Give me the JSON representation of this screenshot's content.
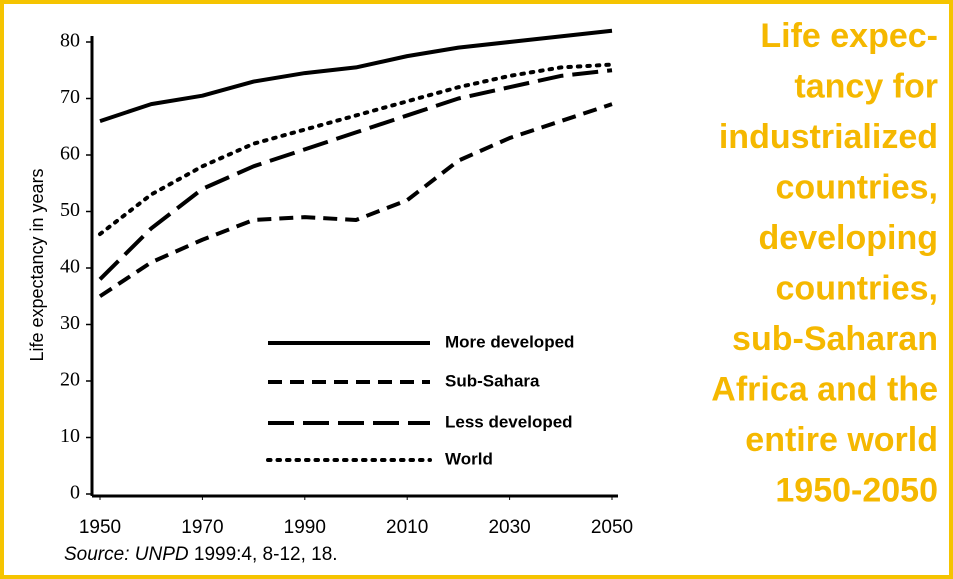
{
  "chart_data": {
    "type": "line",
    "title_lines": [
      "Life expec-",
      "tancy for",
      "industrialized",
      "countries,",
      "developing",
      "countries,",
      "sub-Saharan",
      "Africa and the",
      "entire world",
      "1950-2050"
    ],
    "title_color": "#f5b800",
    "y_label": "Life expectancy in years",
    "source_italic": "Source: UNPD",
    "source_rest": " 1999:4, 8-12, 18.",
    "x": [
      1950,
      1960,
      1970,
      1980,
      1990,
      2000,
      2010,
      2020,
      2030,
      2040,
      2050
    ],
    "xlim": [
      1950,
      2050
    ],
    "xticks": [
      1950,
      1970,
      1990,
      2010,
      2030,
      2050
    ],
    "ylim": [
      0,
      80
    ],
    "yticks": [
      0,
      10,
      20,
      30,
      40,
      50,
      60,
      70,
      80
    ],
    "series": [
      {
        "name": "More developed",
        "color": "#000000",
        "style": "solid",
        "values": [
          66,
          69,
          70.5,
          73,
          74.5,
          75.5,
          77.5,
          79,
          80,
          81,
          82
        ]
      },
      {
        "name": "Sub-Sahara",
        "color": "#000000",
        "style": "dashed",
        "values": [
          35,
          41,
          45,
          48.5,
          49,
          48.5,
          52,
          59,
          63,
          66,
          69
        ]
      },
      {
        "name": "Less developed",
        "color": "#000000",
        "style": "longdash",
        "values": [
          38,
          47,
          54,
          58,
          61,
          64,
          67,
          70,
          72,
          74,
          75
        ]
      },
      {
        "name": "World",
        "color": "#000000",
        "style": "dotted",
        "values": [
          46,
          53,
          58,
          62,
          64.5,
          67,
          69.5,
          72,
          74,
          75.5,
          76
        ]
      }
    ]
  }
}
